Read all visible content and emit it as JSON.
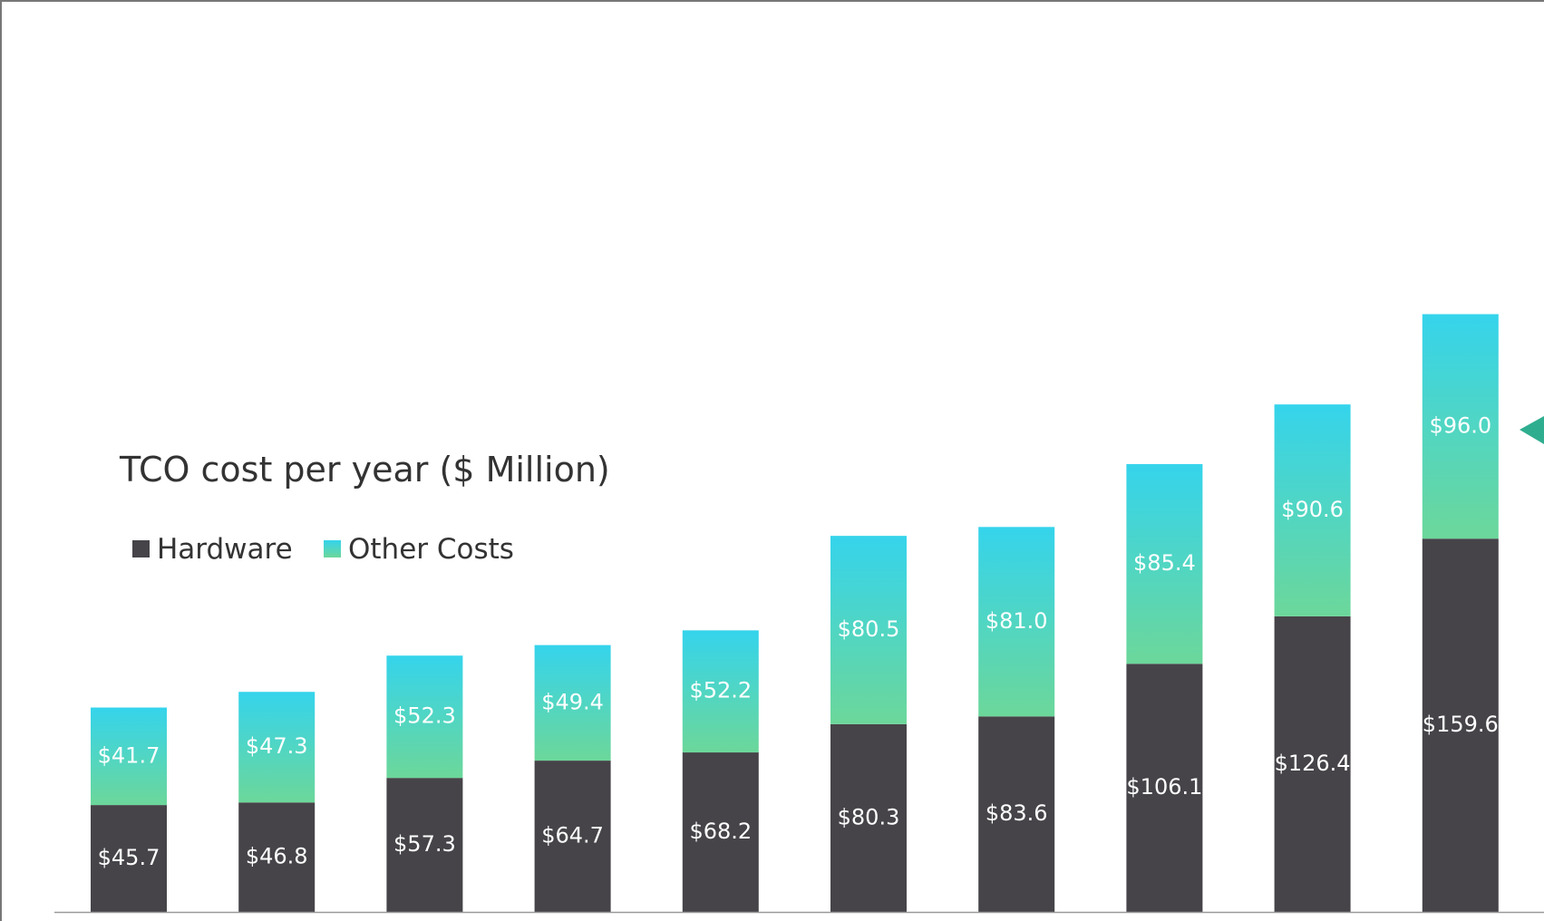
{
  "chart_data": {
    "type": "bar",
    "stacked": true,
    "title": "TCO cost per year ($ Million)",
    "xlabel": "",
    "ylabel": "",
    "ylim": [
      0,
      280
    ],
    "grid": false,
    "legend_placement": "top-left",
    "categories": [
      "",
      "",
      "",
      "",
      "",
      "",
      "",
      "",
      "",
      ""
    ],
    "series": [
      {
        "name": "Hardware",
        "color": "#464449",
        "values": [
          45.7,
          46.8,
          57.3,
          64.7,
          68.2,
          80.3,
          83.6,
          106.1,
          126.4,
          159.6
        ],
        "labels": [
          "$45.7",
          "$46.8",
          "$57.3",
          "$64.7",
          "$68.2",
          "$80.3",
          "$83.6",
          "$106.1",
          "$126.4",
          "$159.6"
        ]
      },
      {
        "name": "Other Costs",
        "color_top": "#35d4ec",
        "color_bottom": "#6cd79a",
        "values": [
          41.7,
          47.3,
          52.3,
          49.4,
          52.2,
          80.5,
          81.0,
          85.4,
          90.6,
          96.0
        ],
        "labels": [
          "$41.7",
          "$47.3",
          "$52.3",
          "$49.4",
          "$52.2",
          "$80.5",
          "$81.0",
          "$85.4",
          "$90.6",
          "$96.0"
        ]
      }
    ]
  },
  "colors": {
    "axis_line": "#9a9a9a",
    "annotation_arrow": "#2fae8f",
    "frame": "#777777"
  }
}
